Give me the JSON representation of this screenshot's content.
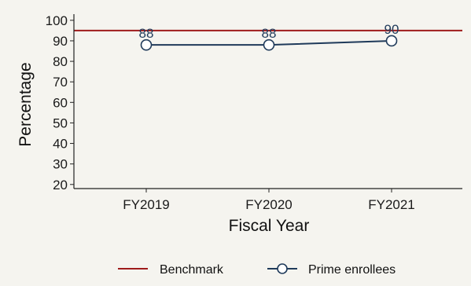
{
  "colors": {
    "background": "#f5f4ef",
    "axis": "#222222",
    "benchmark": "#9e1b1b",
    "series": "#1f3a5a",
    "marker_fill": "#ffffff"
  },
  "chart_data": {
    "type": "line",
    "title": "",
    "xlabel": "Fiscal Year",
    "ylabel": "Percentage",
    "categories": [
      "FY2019",
      "FY2020",
      "FY2021"
    ],
    "ylim": [
      18,
      103
    ],
    "yticks": [
      20,
      30,
      40,
      50,
      60,
      70,
      80,
      90,
      100
    ],
    "grid": false,
    "legend_position": "bottom",
    "reference_lines": [
      {
        "name": "Benchmark",
        "value": 95
      }
    ],
    "series": [
      {
        "name": "Prime enrollees",
        "values": [
          88,
          88,
          90
        ],
        "labels": [
          "88",
          "88",
          "90"
        ],
        "marker": "circle-open"
      }
    ],
    "legend": [
      {
        "label": "Benchmark",
        "style": "line"
      },
      {
        "label": "Prime enrollees",
        "style": "line-marker"
      }
    ]
  }
}
